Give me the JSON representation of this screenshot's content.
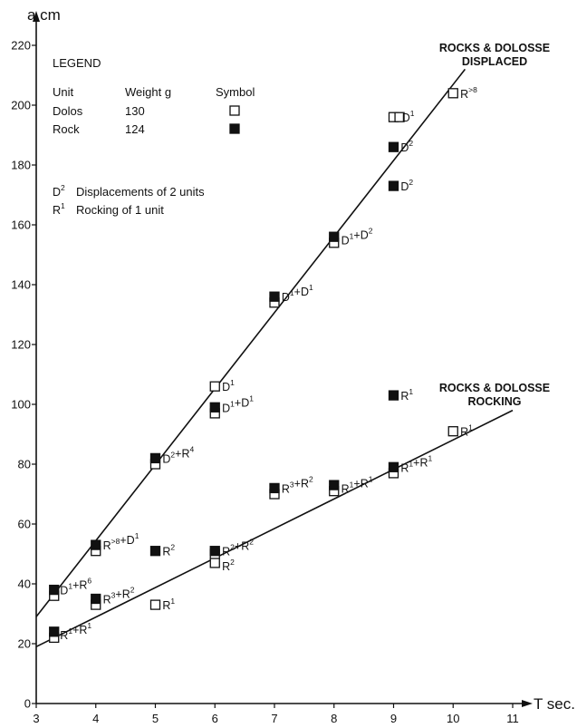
{
  "chart_data": {
    "type": "scatter",
    "title": "",
    "xlabel": "T sec.",
    "ylabel": "a cm",
    "xlim": [
      3,
      11
    ],
    "ylim": [
      0,
      220
    ],
    "xticks": [
      "3",
      "4",
      "5",
      "6",
      "7",
      "8",
      "9",
      "10",
      "11"
    ],
    "yticks": [
      "0",
      "20",
      "40",
      "60",
      "80",
      "100",
      "120",
      "140",
      "160",
      "180",
      "200",
      "220"
    ],
    "grid": false,
    "legend": {
      "title": "LEGEND",
      "headers": [
        "Unit",
        "Weight g",
        "Symbol"
      ],
      "rows": [
        {
          "unit": "Dolos",
          "weight": "130",
          "symbol": "open-square"
        },
        {
          "unit": "Rock",
          "weight": "124",
          "symbol": "filled-square"
        }
      ],
      "notes": [
        {
          "sym": "D",
          "sup": "2",
          "text": "Displacements of 2 units"
        },
        {
          "sym": "R",
          "sup": "1",
          "text": "Rocking of 1 unit"
        }
      ]
    },
    "series": [
      {
        "name": "Dolos",
        "marker": "open-square",
        "points": [
          {
            "x": 3.3,
            "y": 36
          },
          {
            "x": 3.3,
            "y": 22
          },
          {
            "x": 4,
            "y": 51
          },
          {
            "x": 4,
            "y": 33
          },
          {
            "x": 5,
            "y": 80
          },
          {
            "x": 5,
            "y": 33
          },
          {
            "x": 6,
            "y": 106
          },
          {
            "x": 6,
            "y": 97
          },
          {
            "x": 6,
            "y": 47
          },
          {
            "x": 6,
            "y": 50
          },
          {
            "x": 7,
            "y": 134
          },
          {
            "x": 7,
            "y": 70
          },
          {
            "x": 8,
            "y": 154
          },
          {
            "x": 8,
            "y": 71
          },
          {
            "x": 9,
            "y": 196
          },
          {
            "x": 9,
            "y": 77
          },
          {
            "x": 9.1,
            "y": 196
          },
          {
            "x": 10,
            "y": 91
          },
          {
            "x": 10,
            "y": 204
          }
        ]
      },
      {
        "name": "Rock",
        "marker": "filled-square",
        "points": [
          {
            "x": 3.3,
            "y": 38
          },
          {
            "x": 3.3,
            "y": 24
          },
          {
            "x": 4,
            "y": 53
          },
          {
            "x": 4,
            "y": 35
          },
          {
            "x": 5,
            "y": 82
          },
          {
            "x": 5,
            "y": 51
          },
          {
            "x": 6,
            "y": 99
          },
          {
            "x": 6,
            "y": 51
          },
          {
            "x": 7,
            "y": 136
          },
          {
            "x": 7,
            "y": 72
          },
          {
            "x": 8,
            "y": 156
          },
          {
            "x": 8,
            "y": 73
          },
          {
            "x": 9,
            "y": 186
          },
          {
            "x": 9,
            "y": 173
          },
          {
            "x": 9,
            "y": 103
          },
          {
            "x": 9,
            "y": 79
          }
        ]
      }
    ],
    "lines": [
      {
        "caption": [
          "ROCKS & DOLOSSE",
          "DISPLACED"
        ],
        "from": [
          3,
          29
        ],
        "to": [
          10.2,
          212
        ]
      },
      {
        "caption": [
          "ROCKS & DOLOSSE",
          "ROCKING"
        ],
        "from": [
          3,
          19
        ],
        "to": [
          11,
          98
        ]
      }
    ],
    "annotations": [
      {
        "x": 3.4,
        "y": 38,
        "parts": [
          [
            "D",
            "1"
          ],
          "+",
          [
            "R",
            "6"
          ]
        ]
      },
      {
        "x": 3.4,
        "y": 23,
        "parts": [
          [
            "R",
            "1"
          ],
          "+",
          [
            "R",
            "1"
          ]
        ]
      },
      {
        "x": 4.12,
        "y": 53,
        "parts": [
          [
            "R",
            ">8"
          ],
          "+",
          [
            "D",
            "1"
          ]
        ]
      },
      {
        "x": 4.12,
        "y": 35,
        "parts": [
          [
            "R",
            "3"
          ],
          "+",
          [
            "R",
            "2"
          ]
        ]
      },
      {
        "x": 5.12,
        "y": 82,
        "parts": [
          [
            "D",
            "2"
          ],
          "+",
          [
            "R",
            "4"
          ]
        ]
      },
      {
        "x": 5.12,
        "y": 51,
        "parts": [
          [
            "R",
            "2"
          ]
        ]
      },
      {
        "x": 5.12,
        "y": 33,
        "parts": [
          [
            "R",
            "1"
          ]
        ]
      },
      {
        "x": 6.12,
        "y": 106,
        "parts": [
          [
            "D",
            "1"
          ]
        ]
      },
      {
        "x": 6.12,
        "y": 99,
        "parts": [
          [
            "D",
            "1"
          ],
          "+",
          [
            "D",
            "1"
          ]
        ]
      },
      {
        "x": 6.12,
        "y": 51,
        "parts": [
          [
            "R",
            "2"
          ],
          "+",
          [
            "R",
            "2"
          ]
        ]
      },
      {
        "x": 6.12,
        "y": 46,
        "parts": [
          [
            "R",
            "2"
          ]
        ]
      },
      {
        "x": 7.12,
        "y": 136,
        "parts": [
          [
            "D",
            "1"
          ],
          "+",
          [
            "D",
            "1"
          ]
        ]
      },
      {
        "x": 7.12,
        "y": 72,
        "parts": [
          [
            "R",
            "3"
          ],
          "+",
          [
            "R",
            "2"
          ]
        ]
      },
      {
        "x": 8.12,
        "y": 155,
        "parts": [
          [
            "D",
            "1"
          ],
          "+",
          [
            "D",
            "2"
          ]
        ]
      },
      {
        "x": 8.12,
        "y": 72,
        "parts": [
          [
            "R",
            "1"
          ],
          "+",
          [
            "R",
            "1"
          ]
        ]
      },
      {
        "x": 9.14,
        "y": 196,
        "parts": [
          [
            "D",
            "1"
          ]
        ]
      },
      {
        "x": 9.12,
        "y": 186,
        "parts": [
          [
            "D",
            "2"
          ]
        ]
      },
      {
        "x": 9.12,
        "y": 173,
        "parts": [
          [
            "D",
            "2"
          ]
        ]
      },
      {
        "x": 9.12,
        "y": 103,
        "parts": [
          [
            "R",
            "1"
          ]
        ]
      },
      {
        "x": 9.12,
        "y": 79,
        "parts": [
          [
            "R",
            "1"
          ],
          "+",
          [
            "R",
            "1"
          ]
        ]
      },
      {
        "x": 10.12,
        "y": 91,
        "parts": [
          [
            "R",
            "1"
          ]
        ]
      },
      {
        "x": 10.12,
        "y": 204,
        "parts": [
          [
            "R",
            ">8"
          ]
        ]
      }
    ]
  }
}
